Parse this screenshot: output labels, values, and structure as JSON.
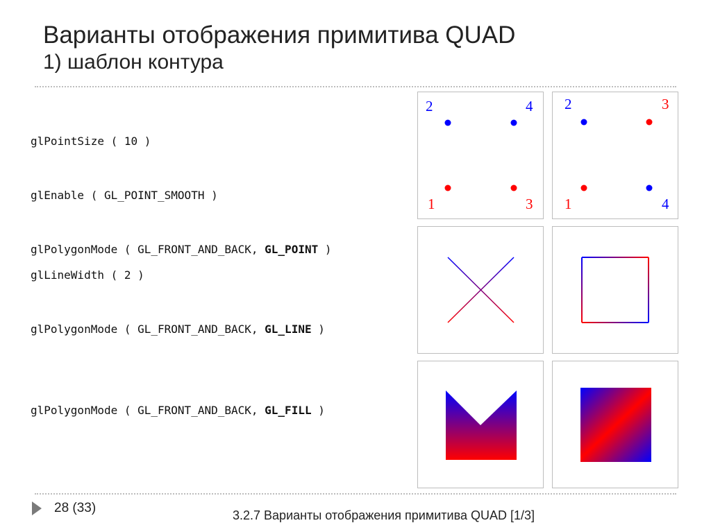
{
  "header": {
    "title": "Варианты отображения примитива QUAD",
    "subtitle": "1) шаблон контура"
  },
  "blocks": [
    {
      "lines": [
        {
          "pre": "glPointSize ( 10 )",
          "bold": "",
          "post": ""
        },
        {
          "pre": "glEnable ( GL_POINT_SMOOTH )",
          "bold": "",
          "post": ""
        },
        {
          "pre": "glPolygonMode ( GL_FRONT_AND_BACK, ",
          "bold": "GL_POINT",
          "post": " )"
        }
      ]
    },
    {
      "lines": [
        {
          "pre": "glLineWidth ( 2 )",
          "bold": "",
          "post": ""
        },
        {
          "pre": "glPolygonMode ( GL_FRONT_AND_BACK, ",
          "bold": "GL_LINE",
          "post": " )"
        }
      ]
    },
    {
      "lines": [
        {
          "pre": "glPolygonMode ( GL_FRONT_AND_BACK, ",
          "bold": "GL_FILL",
          "post": " )"
        }
      ]
    }
  ],
  "panels": {
    "points_left": {
      "top_left": "2",
      "top_right": "4",
      "bottom_left": "1",
      "bottom_right": "3"
    },
    "points_right": {
      "top_left": "2",
      "top_right": "3",
      "bottom_left": "1",
      "bottom_right": "4"
    }
  },
  "colors": {
    "red": "#ff0000",
    "blue": "#0000ff"
  },
  "footer": {
    "page": "28 (33)",
    "caption": "3.2.7 Варианты отображения примитива QUAD  [1/3]"
  }
}
